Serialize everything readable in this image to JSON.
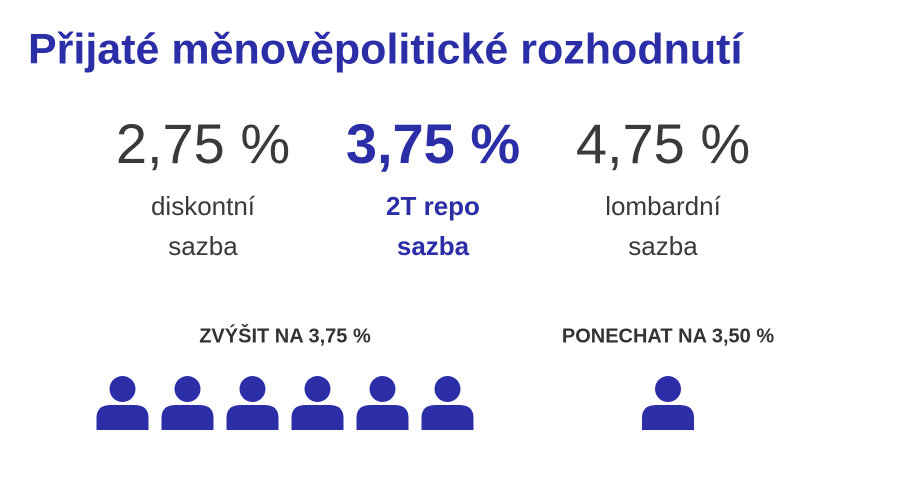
{
  "title": "Přijaté měnověpolitické rozhodnutí",
  "rates": [
    {
      "value": "2,75 %",
      "label": [
        "diskontní",
        "sazba"
      ],
      "highlight": false
    },
    {
      "value": "3,75 %",
      "label": [
        "2T repo",
        "sazba"
      ],
      "highlight": true
    },
    {
      "value": "4,75 %",
      "label": [
        "lombardní",
        "sazba"
      ],
      "highlight": false
    }
  ],
  "votes": [
    {
      "label": "ZVÝŠIT NA 3,75 %",
      "count": 6
    },
    {
      "label": "PONECHAT NA 3,50 %",
      "count": 1
    }
  ]
}
